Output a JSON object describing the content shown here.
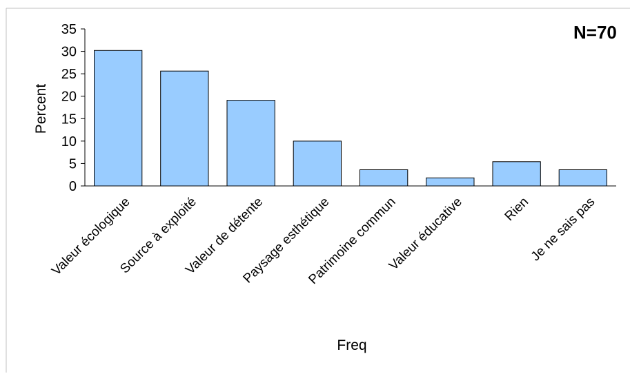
{
  "chart_data": {
    "type": "bar",
    "title": "",
    "annotation": "N=70",
    "xlabel": "Freq",
    "ylabel": "Percent",
    "ylim": [
      0,
      35
    ],
    "yticks": [
      "0",
      "5",
      "10",
      "15",
      "20",
      "25",
      "30",
      "35"
    ],
    "categories": [
      "Valeur écologique",
      "Source à exploité",
      "Valeur de détente",
      "Paysage esthétique",
      "Patrimoine commun",
      "Valeur éducative",
      "Rien",
      "Je ne sais pas"
    ],
    "values": [
      30.2,
      25.6,
      19.1,
      10.0,
      3.6,
      1.8,
      5.4,
      3.6
    ],
    "grid": false,
    "legend": "none",
    "colors": {
      "bar_fill": "#99ccff",
      "bar_stroke": "#000000",
      "axis": "#000000",
      "frame": "#c0c0c0"
    }
  }
}
